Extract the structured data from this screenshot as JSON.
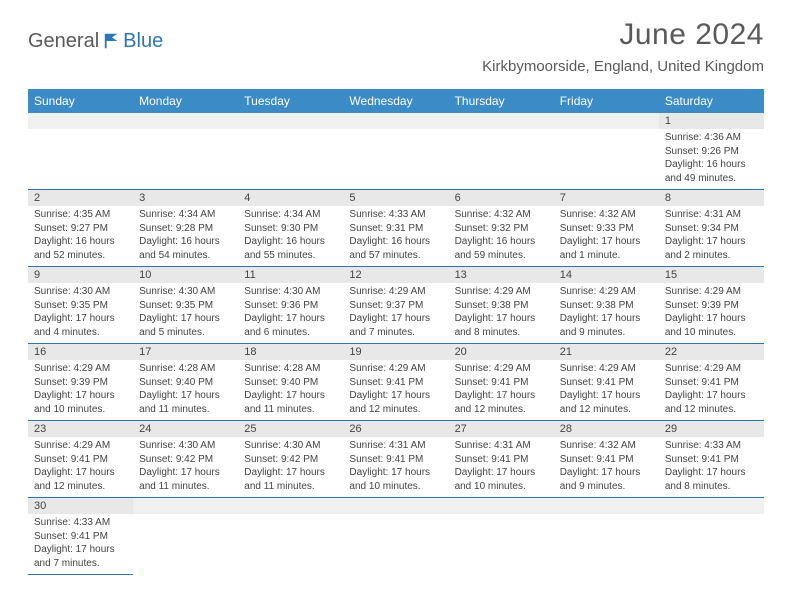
{
  "brand": {
    "part1": "General",
    "part2": "Blue"
  },
  "title": "June 2024",
  "location": "Kirkbymoorside, England, United Kingdom",
  "header_bg": "#3b8bc6",
  "border_color": "#2e75b6",
  "days": [
    "Sunday",
    "Monday",
    "Tuesday",
    "Wednesday",
    "Thursday",
    "Friday",
    "Saturday"
  ],
  "weeks": [
    [
      null,
      null,
      null,
      null,
      null,
      null,
      {
        "n": "1",
        "sr": "4:36 AM",
        "ss": "9:26 PM",
        "dl": "16 hours and 49 minutes."
      }
    ],
    [
      {
        "n": "2",
        "sr": "4:35 AM",
        "ss": "9:27 PM",
        "dl": "16 hours and 52 minutes."
      },
      {
        "n": "3",
        "sr": "4:34 AM",
        "ss": "9:28 PM",
        "dl": "16 hours and 54 minutes."
      },
      {
        "n": "4",
        "sr": "4:34 AM",
        "ss": "9:30 PM",
        "dl": "16 hours and 55 minutes."
      },
      {
        "n": "5",
        "sr": "4:33 AM",
        "ss": "9:31 PM",
        "dl": "16 hours and 57 minutes."
      },
      {
        "n": "6",
        "sr": "4:32 AM",
        "ss": "9:32 PM",
        "dl": "16 hours and 59 minutes."
      },
      {
        "n": "7",
        "sr": "4:32 AM",
        "ss": "9:33 PM",
        "dl": "17 hours and 1 minute."
      },
      {
        "n": "8",
        "sr": "4:31 AM",
        "ss": "9:34 PM",
        "dl": "17 hours and 2 minutes."
      }
    ],
    [
      {
        "n": "9",
        "sr": "4:30 AM",
        "ss": "9:35 PM",
        "dl": "17 hours and 4 minutes."
      },
      {
        "n": "10",
        "sr": "4:30 AM",
        "ss": "9:35 PM",
        "dl": "17 hours and 5 minutes."
      },
      {
        "n": "11",
        "sr": "4:30 AM",
        "ss": "9:36 PM",
        "dl": "17 hours and 6 minutes."
      },
      {
        "n": "12",
        "sr": "4:29 AM",
        "ss": "9:37 PM",
        "dl": "17 hours and 7 minutes."
      },
      {
        "n": "13",
        "sr": "4:29 AM",
        "ss": "9:38 PM",
        "dl": "17 hours and 8 minutes."
      },
      {
        "n": "14",
        "sr": "4:29 AM",
        "ss": "9:38 PM",
        "dl": "17 hours and 9 minutes."
      },
      {
        "n": "15",
        "sr": "4:29 AM",
        "ss": "9:39 PM",
        "dl": "17 hours and 10 minutes."
      }
    ],
    [
      {
        "n": "16",
        "sr": "4:29 AM",
        "ss": "9:39 PM",
        "dl": "17 hours and 10 minutes."
      },
      {
        "n": "17",
        "sr": "4:28 AM",
        "ss": "9:40 PM",
        "dl": "17 hours and 11 minutes."
      },
      {
        "n": "18",
        "sr": "4:28 AM",
        "ss": "9:40 PM",
        "dl": "17 hours and 11 minutes."
      },
      {
        "n": "19",
        "sr": "4:29 AM",
        "ss": "9:41 PM",
        "dl": "17 hours and 12 minutes."
      },
      {
        "n": "20",
        "sr": "4:29 AM",
        "ss": "9:41 PM",
        "dl": "17 hours and 12 minutes."
      },
      {
        "n": "21",
        "sr": "4:29 AM",
        "ss": "9:41 PM",
        "dl": "17 hours and 12 minutes."
      },
      {
        "n": "22",
        "sr": "4:29 AM",
        "ss": "9:41 PM",
        "dl": "17 hours and 12 minutes."
      }
    ],
    [
      {
        "n": "23",
        "sr": "4:29 AM",
        "ss": "9:41 PM",
        "dl": "17 hours and 12 minutes."
      },
      {
        "n": "24",
        "sr": "4:30 AM",
        "ss": "9:42 PM",
        "dl": "17 hours and 11 minutes."
      },
      {
        "n": "25",
        "sr": "4:30 AM",
        "ss": "9:42 PM",
        "dl": "17 hours and 11 minutes."
      },
      {
        "n": "26",
        "sr": "4:31 AM",
        "ss": "9:41 PM",
        "dl": "17 hours and 10 minutes."
      },
      {
        "n": "27",
        "sr": "4:31 AM",
        "ss": "9:41 PM",
        "dl": "17 hours and 10 minutes."
      },
      {
        "n": "28",
        "sr": "4:32 AM",
        "ss": "9:41 PM",
        "dl": "17 hours and 9 minutes."
      },
      {
        "n": "29",
        "sr": "4:33 AM",
        "ss": "9:41 PM",
        "dl": "17 hours and 8 minutes."
      }
    ],
    [
      {
        "n": "30",
        "sr": "4:33 AM",
        "ss": "9:41 PM",
        "dl": "17 hours and 7 minutes."
      },
      null,
      null,
      null,
      null,
      null,
      null
    ]
  ],
  "labels": {
    "sunrise": "Sunrise: ",
    "sunset": "Sunset: ",
    "daylight": "Daylight: "
  }
}
